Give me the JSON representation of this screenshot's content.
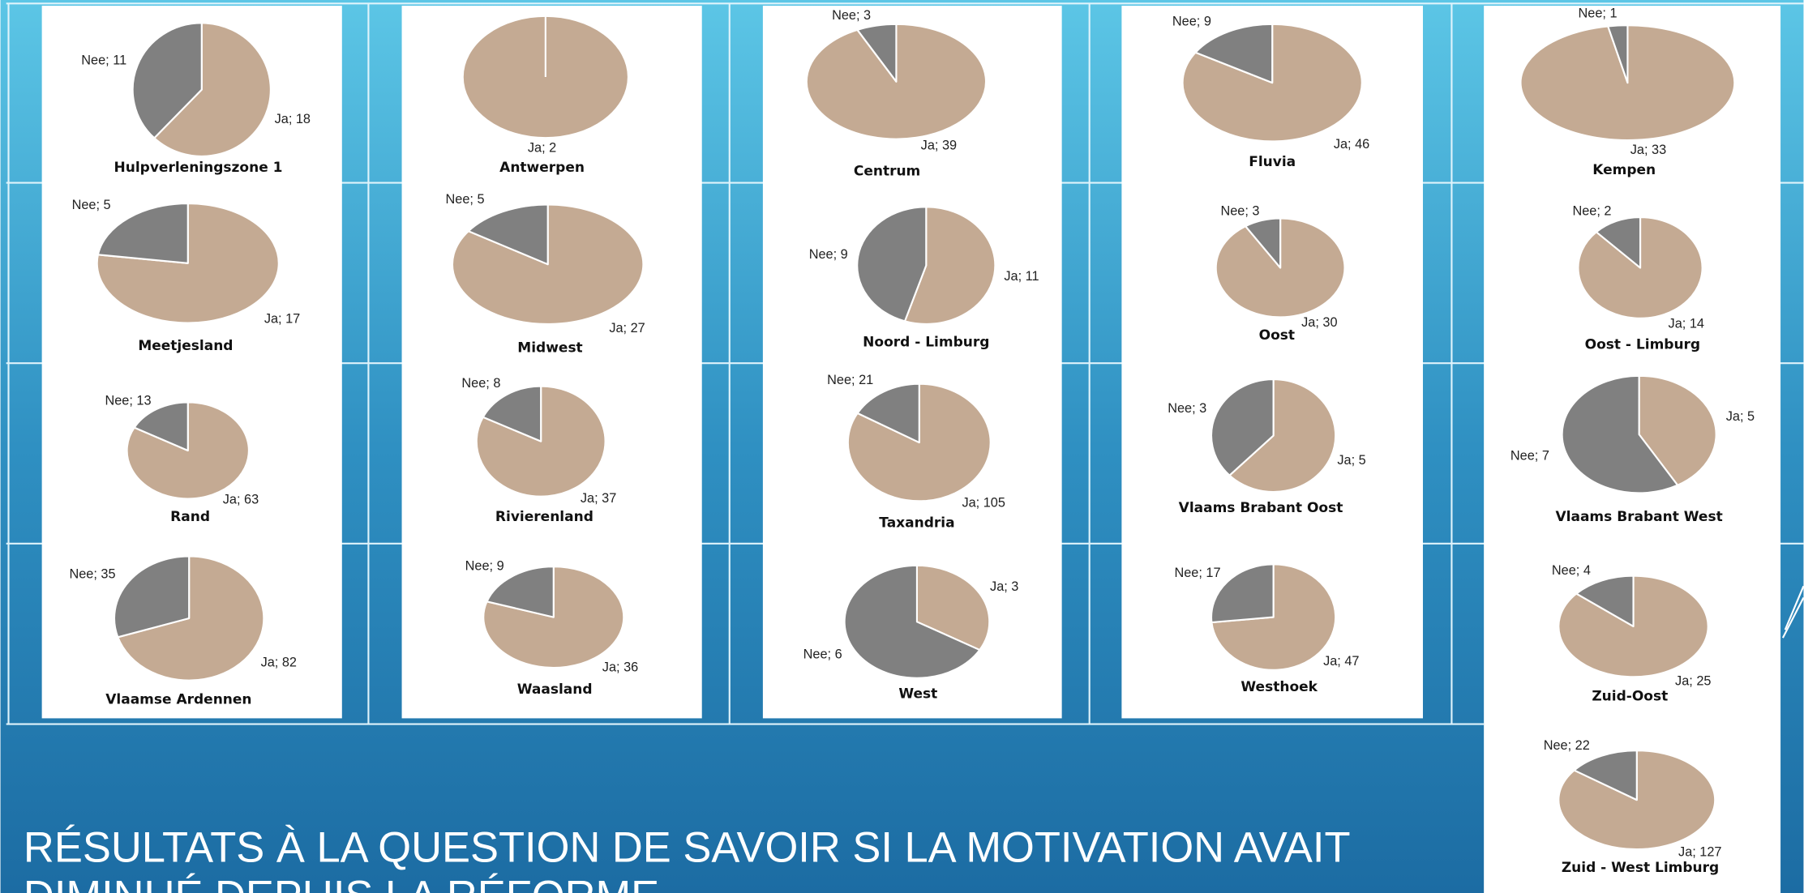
{
  "title_lines": [
    "RÉSULTATS À LA QUESTION DE SAVOIR SI LA MOTIVATION AVAIT",
    "DIMINUÉ DEPUIS LA RÉFORME"
  ],
  "chart_data": [
    {
      "type": "pie",
      "title": "Hulpverleningszone 1",
      "values": [
        18,
        11
      ],
      "value_labels": [
        "Ja; 18",
        "Nee; 11"
      ],
      "colors": [
        "#c4aa93",
        "#808080"
      ]
    },
    {
      "type": "pie",
      "title": "Antwerpen",
      "values": [
        2
      ],
      "value_labels": [
        "Ja; 2"
      ],
      "colors": [
        "#c4aa93"
      ]
    },
    {
      "type": "pie",
      "title": "Centrum",
      "values": [
        39,
        3
      ],
      "value_labels": [
        "Ja; 39",
        "Nee; 3"
      ],
      "colors": [
        "#c4aa93",
        "#808080"
      ]
    },
    {
      "type": "pie",
      "title": "Fluvia",
      "values": [
        46,
        9
      ],
      "value_labels": [
        "Ja; 46",
        "Nee; 9"
      ],
      "colors": [
        "#c4aa93",
        "#808080"
      ]
    },
    {
      "type": "pie",
      "title": "Kempen",
      "values": [
        33,
        1
      ],
      "value_labels": [
        "Ja; 33",
        "Nee; 1"
      ],
      "colors": [
        "#c4aa93",
        "#808080"
      ]
    },
    {
      "type": "pie",
      "title": "Meetjesland",
      "values": [
        17,
        5
      ],
      "value_labels": [
        "Ja; 17",
        "Nee; 5"
      ],
      "colors": [
        "#c4aa93",
        "#808080"
      ]
    },
    {
      "type": "pie",
      "title": "Midwest",
      "values": [
        27,
        5
      ],
      "value_labels": [
        "Ja; 27",
        "Nee; 5"
      ],
      "colors": [
        "#c4aa93",
        "#808080"
      ]
    },
    {
      "type": "pie",
      "title": "Noord - Limburg",
      "values": [
        11,
        9
      ],
      "value_labels": [
        "Ja; 11",
        "Nee; 9"
      ],
      "colors": [
        "#c4aa93",
        "#808080"
      ]
    },
    {
      "type": "pie",
      "title": "Oost",
      "values": [
        30,
        3
      ],
      "value_labels": [
        "Ja; 30",
        "Nee; 3"
      ],
      "colors": [
        "#c4aa93",
        "#808080"
      ]
    },
    {
      "type": "pie",
      "title": "Oost - Limburg",
      "values": [
        14,
        2
      ],
      "value_labels": [
        "Ja; 14",
        "Nee; 2"
      ],
      "colors": [
        "#c4aa93",
        "#808080"
      ]
    },
    {
      "type": "pie",
      "title": "Rand",
      "values": [
        63,
        13
      ],
      "value_labels": [
        "Ja; 63",
        "Nee; 13"
      ],
      "colors": [
        "#c4aa93",
        "#808080"
      ]
    },
    {
      "type": "pie",
      "title": "Rivierenland",
      "values": [
        37,
        8
      ],
      "value_labels": [
        "Ja; 37",
        "Nee; 8"
      ],
      "colors": [
        "#c4aa93",
        "#808080"
      ]
    },
    {
      "type": "pie",
      "title": "Taxandria",
      "values": [
        105,
        21
      ],
      "value_labels": [
        "Ja; 105",
        "Nee; 21"
      ],
      "colors": [
        "#c4aa93",
        "#808080"
      ]
    },
    {
      "type": "pie",
      "title": "Vlaams Brabant Oost",
      "values": [
        5,
        3
      ],
      "value_labels": [
        "Ja; 5",
        "Nee; 3"
      ],
      "colors": [
        "#c4aa93",
        "#808080"
      ]
    },
    {
      "type": "pie",
      "title": "Vlaams Brabant West",
      "values": [
        5,
        7
      ],
      "value_labels": [
        "Ja; 5",
        "Nee; 7"
      ],
      "colors": [
        "#c4aa93",
        "#808080"
      ]
    },
    {
      "type": "pie",
      "title": "Vlaamse Ardennen",
      "values": [
        82,
        35
      ],
      "value_labels": [
        "Ja; 82",
        "Nee; 35"
      ],
      "colors": [
        "#c4aa93",
        "#808080"
      ]
    },
    {
      "type": "pie",
      "title": "Waasland",
      "values": [
        36,
        9
      ],
      "value_labels": [
        "Ja; 36",
        "Nee; 9"
      ],
      "colors": [
        "#c4aa93",
        "#808080"
      ]
    },
    {
      "type": "pie",
      "title": "West",
      "values": [
        3,
        6
      ],
      "value_labels": [
        "Ja; 3",
        "Nee; 6"
      ],
      "colors": [
        "#c4aa93",
        "#808080"
      ]
    },
    {
      "type": "pie",
      "title": "Westhoek",
      "values": [
        47,
        17
      ],
      "value_labels": [
        "Ja; 47",
        "Nee; 17"
      ],
      "colors": [
        "#c4aa93",
        "#808080"
      ]
    },
    {
      "type": "pie",
      "title": "Zuid-Oost",
      "values": [
        25,
        4
      ],
      "value_labels": [
        "Ja; 25",
        "Nee; 4"
      ],
      "colors": [
        "#c4aa93",
        "#808080"
      ]
    },
    {
      "type": "pie",
      "title": "Zuid - West Limburg",
      "values": [
        127,
        22
      ],
      "value_labels": [
        "Ja; 127",
        "Nee; 22"
      ],
      "colors": [
        "#c4aa93",
        "#808080"
      ]
    }
  ]
}
